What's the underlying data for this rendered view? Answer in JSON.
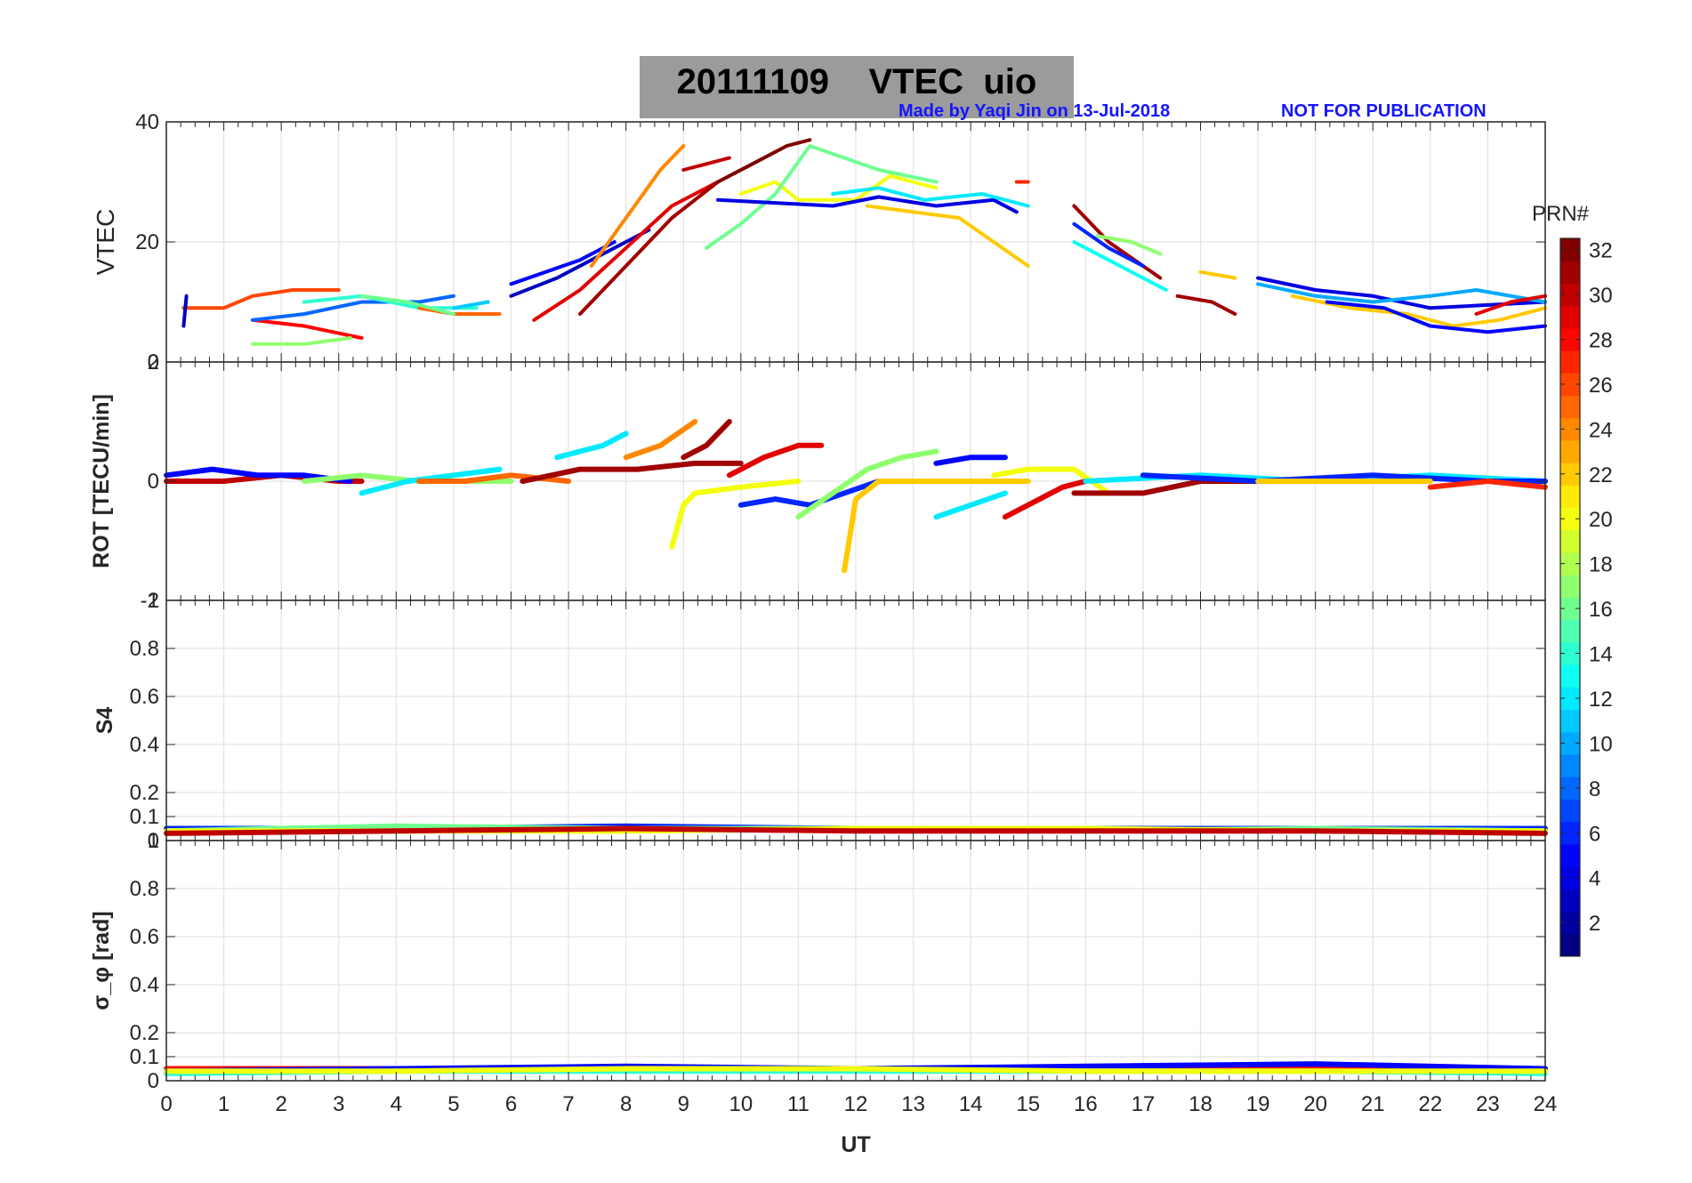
{
  "title": {
    "date": "20111109",
    "parameter": "VTEC",
    "station": "uio",
    "credit": "Made by Yaqi Jin on 13-Jul-2018",
    "notice": "NOT FOR PUBLICATION"
  },
  "colorbar": {
    "label": "PRN#",
    "ticks": [
      "2",
      "4",
      "6",
      "8",
      "10",
      "12",
      "14",
      "16",
      "18",
      "20",
      "22",
      "24",
      "26",
      "28",
      "30",
      "32"
    ],
    "range": [
      1,
      32
    ]
  },
  "chart_data": [
    {
      "type": "line",
      "panel": "VTEC",
      "ylabel": "VTEC",
      "ylim": [
        0,
        40
      ],
      "yticks": [
        "0",
        "20",
        "40"
      ],
      "xlim": [
        0,
        24
      ],
      "series": [
        {
          "prn": 5,
          "x": [
            6.0,
            6.6,
            7.2,
            7.8
          ],
          "y": [
            13,
            15,
            17,
            20
          ]
        },
        {
          "prn": 3,
          "x": [
            6.0,
            6.8,
            7.6,
            8.4
          ],
          "y": [
            11,
            14,
            18,
            22
          ]
        },
        {
          "prn": 24,
          "x": [
            7.4,
            8.0,
            8.6,
            9.0
          ],
          "y": [
            16,
            24,
            32,
            36
          ]
        },
        {
          "prn": 29,
          "x": [
            6.4,
            7.2,
            8.0,
            8.8,
            9.6
          ],
          "y": [
            7,
            12,
            19,
            26,
            30
          ]
        },
        {
          "prn": 31,
          "x": [
            7.2,
            8.0,
            8.8,
            9.6
          ],
          "y": [
            8,
            16,
            24,
            30
          ]
        },
        {
          "prn": 32,
          "x": [
            9.6,
            10.2,
            10.8,
            11.2
          ],
          "y": [
            30,
            33,
            36,
            37
          ]
        },
        {
          "prn": 30,
          "x": [
            9.0,
            9.4,
            9.8
          ],
          "y": [
            32,
            33,
            34
          ]
        },
        {
          "prn": 20,
          "x": [
            10.0,
            10.6,
            11.0,
            12.0,
            12.6,
            13.4
          ],
          "y": [
            28,
            30,
            27,
            27,
            31,
            29
          ]
        },
        {
          "prn": 16,
          "x": [
            9.4,
            10.0,
            10.6,
            11.2,
            12.4,
            13.4
          ],
          "y": [
            19,
            23,
            28,
            36,
            32,
            30
          ]
        },
        {
          "prn": 4,
          "x": [
            9.6,
            10.6,
            11.6,
            12.4,
            13.4,
            14.4,
            14.8
          ],
          "y": [
            27,
            26.5,
            26,
            27.5,
            26,
            27,
            25
          ]
        },
        {
          "prn": 12,
          "x": [
            11.6,
            12.4,
            13.2,
            14.2,
            15.0
          ],
          "y": [
            28,
            29,
            27,
            28,
            26
          ]
        },
        {
          "prn": 22,
          "x": [
            12.2,
            13.0,
            13.8,
            14.4,
            15.0
          ],
          "y": [
            26,
            25,
            24,
            20,
            16
          ]
        },
        {
          "prn": 27,
          "x": [
            14.8,
            15.0
          ],
          "y": [
            30,
            30
          ]
        },
        {
          "prn": 31,
          "x": [
            15.8,
            16.4,
            17.0,
            17.3
          ],
          "y": [
            26,
            20,
            16,
            14
          ]
        },
        {
          "prn": 17,
          "x": [
            16.2,
            16.8,
            17.3
          ],
          "y": [
            21,
            20,
            18
          ]
        },
        {
          "prn": 13,
          "x": [
            15.8,
            16.4,
            17.0,
            17.4
          ],
          "y": [
            20,
            17,
            14,
            12
          ]
        },
        {
          "prn": 6,
          "x": [
            15.8,
            16.4,
            17.0
          ],
          "y": [
            23,
            19,
            16
          ]
        },
        {
          "prn": 31,
          "x": [
            17.6,
            18.2,
            18.6
          ],
          "y": [
            11,
            10,
            8
          ]
        },
        {
          "prn": 22,
          "x": [
            18.0,
            18.6
          ],
          "y": [
            15,
            14
          ]
        },
        {
          "prn": 4,
          "x": [
            19.0,
            20.0,
            21.0,
            22.0,
            23.0,
            24.0
          ],
          "y": [
            14,
            12,
            11,
            9,
            9.5,
            10
          ]
        },
        {
          "prn": 10,
          "x": [
            19.0,
            20.0,
            21.0,
            22.0,
            22.8,
            24.0
          ],
          "y": [
            13,
            11,
            10,
            11,
            12,
            10
          ]
        },
        {
          "prn": 22,
          "x": [
            19.6,
            20.6,
            21.6,
            22.4,
            23.2,
            24.0
          ],
          "y": [
            11,
            9,
            8,
            6,
            7,
            9
          ]
        },
        {
          "prn": 5,
          "x": [
            20.2,
            21.2,
            22.0,
            23.0,
            24.0
          ],
          "y": [
            10,
            9,
            6,
            5,
            6
          ]
        },
        {
          "prn": 29,
          "x": [
            22.8,
            23.4,
            24.0
          ],
          "y": [
            8,
            10,
            11
          ]
        },
        {
          "prn": 26,
          "x": [
            0.3,
            1.0,
            1.5,
            2.2,
            3.0
          ],
          "y": [
            9,
            9,
            11,
            12,
            12
          ]
        },
        {
          "prn": 28,
          "x": [
            1.5,
            2.4,
            3.4
          ],
          "y": [
            7,
            6,
            4
          ]
        },
        {
          "prn": 17,
          "x": [
            1.5,
            2.4,
            3.2
          ],
          "y": [
            3,
            3,
            4
          ]
        },
        {
          "prn": 8,
          "x": [
            1.5,
            2.4,
            3.4,
            4.4,
            5.0
          ],
          "y": [
            7,
            8,
            10,
            10,
            11
          ]
        },
        {
          "prn": 14,
          "x": [
            2.4,
            3.4,
            4.4,
            5.4
          ],
          "y": [
            10,
            11,
            9,
            9
          ]
        },
        {
          "prn": 25,
          "x": [
            4.4,
            5.0,
            5.8
          ],
          "y": [
            9,
            8,
            8
          ]
        },
        {
          "prn": 16,
          "x": [
            3.4,
            4.2,
            5.0
          ],
          "y": [
            11,
            10,
            8
          ]
        },
        {
          "prn": 11,
          "x": [
            5.0,
            5.6
          ],
          "y": [
            9,
            10
          ]
        },
        {
          "prn": 3,
          "x": [
            0.3,
            0.35
          ],
          "y": [
            6,
            11
          ]
        }
      ]
    },
    {
      "type": "line",
      "panel": "ROT",
      "ylabel": "ROT [TECU/min]",
      "ylim": [
        -2,
        2
      ],
      "yticks": [
        "-2",
        "0",
        "2"
      ],
      "xlim": [
        0,
        24
      ],
      "series": [
        {
          "prn": 30,
          "x": [
            0,
            1,
            2,
            3,
            3.4
          ],
          "y": [
            0,
            0,
            0.1,
            0,
            0
          ]
        },
        {
          "prn": 5,
          "x": [
            0,
            0.8,
            1.6,
            2.4,
            3.2
          ],
          "y": [
            0.1,
            0.2,
            0.1,
            0.1,
            0
          ]
        },
        {
          "prn": 17,
          "x": [
            2.4,
            3.4,
            4.4,
            5.4,
            6.0
          ],
          "y": [
            0,
            0.1,
            0,
            0,
            0
          ]
        },
        {
          "prn": 12,
          "x": [
            3.4,
            4.2,
            5.0,
            5.8
          ],
          "y": [
            -0.2,
            0,
            0.1,
            0.2
          ]
        },
        {
          "prn": 25,
          "x": [
            4.4,
            5.2,
            6.0,
            7.0
          ],
          "y": [
            0,
            0,
            0.1,
            0
          ]
        },
        {
          "prn": 31,
          "x": [
            6.2,
            7.2,
            8.2,
            9.2,
            10.0
          ],
          "y": [
            0,
            0.2,
            0.2,
            0.3,
            0.3
          ]
        },
        {
          "prn": 12,
          "x": [
            6.8,
            7.6,
            8.0
          ],
          "y": [
            0.4,
            0.6,
            0.8
          ]
        },
        {
          "prn": 24,
          "x": [
            8.0,
            8.6,
            9.2
          ],
          "y": [
            0.4,
            0.6,
            1.0
          ]
        },
        {
          "prn": 31,
          "x": [
            9.0,
            9.4,
            9.8
          ],
          "y": [
            0.4,
            0.6,
            1.0
          ]
        },
        {
          "prn": 29,
          "x": [
            9.8,
            10.4,
            11.0,
            11.4
          ],
          "y": [
            0.1,
            0.4,
            0.6,
            0.6
          ]
        },
        {
          "prn": 20,
          "x": [
            8.8,
            9.0,
            9.2,
            10.0,
            11.0
          ],
          "y": [
            -1.1,
            -0.4,
            -0.2,
            -0.1,
            0
          ]
        },
        {
          "prn": 6,
          "x": [
            10.0,
            10.6,
            11.2,
            11.8,
            12.4
          ],
          "y": [
            -0.4,
            -0.3,
            -0.4,
            -0.2,
            0
          ]
        },
        {
          "prn": 17,
          "x": [
            11.0,
            11.6,
            12.2,
            12.8,
            13.4
          ],
          "y": [
            -0.6,
            -0.2,
            0.2,
            0.4,
            0.5
          ]
        },
        {
          "prn": 22,
          "x": [
            11.8,
            12.0,
            12.4,
            13.4,
            14.4,
            15.0
          ],
          "y": [
            -1.5,
            -0.3,
            0,
            0,
            0,
            0
          ]
        },
        {
          "prn": 5,
          "x": [
            13.4,
            14.0,
            14.6
          ],
          "y": [
            0.3,
            0.4,
            0.4
          ]
        },
        {
          "prn": 12,
          "x": [
            13.4,
            14.0,
            14.6
          ],
          "y": [
            -0.6,
            -0.4,
            -0.2
          ]
        },
        {
          "prn": 20,
          "x": [
            14.4,
            15.0,
            15.8,
            16.4
          ],
          "y": [
            0.1,
            0.2,
            0.2,
            -0.2
          ]
        },
        {
          "prn": 29,
          "x": [
            14.6,
            15.2,
            15.6,
            16.0
          ],
          "y": [
            -0.6,
            -0.3,
            -0.1,
            0
          ]
        },
        {
          "prn": 31,
          "x": [
            15.8,
            17.0,
            18.0,
            19.0,
            19.4
          ],
          "y": [
            -0.2,
            -0.2,
            0,
            0,
            0
          ]
        },
        {
          "prn": 12,
          "x": [
            16.0,
            18.0,
            20.0,
            22.0,
            24.0
          ],
          "y": [
            0,
            0.1,
            0,
            0.1,
            0
          ]
        },
        {
          "prn": 6,
          "x": [
            17.0,
            19.0,
            21.0,
            23.0,
            24.0
          ],
          "y": [
            0.1,
            0,
            0.1,
            0,
            0
          ]
        },
        {
          "prn": 22,
          "x": [
            19.0,
            20.0,
            21.0,
            22.0
          ],
          "y": [
            0,
            0,
            0,
            0
          ]
        },
        {
          "prn": 27,
          "x": [
            22.0,
            23.0,
            24.0
          ],
          "y": [
            -0.1,
            0,
            -0.1
          ]
        }
      ]
    },
    {
      "type": "line",
      "panel": "S4",
      "ylabel": "S4",
      "ylim": [
        0,
        1
      ],
      "yticks": [
        "0",
        "0.1",
        "0.2",
        "0.4",
        "0.6",
        "0.8",
        "1"
      ],
      "xlim": [
        0,
        24
      ],
      "series": [
        {
          "prn": 6,
          "x": [
            0,
            4,
            8,
            12,
            16,
            20,
            24
          ],
          "y": [
            0.05,
            0.05,
            0.06,
            0.05,
            0.05,
            0.05,
            0.05
          ]
        },
        {
          "prn": 16,
          "x": [
            0,
            4,
            8,
            12,
            16,
            20,
            24
          ],
          "y": [
            0.04,
            0.06,
            0.05,
            0.05,
            0.04,
            0.05,
            0.04
          ]
        },
        {
          "prn": 20,
          "x": [
            0,
            4,
            8,
            12,
            16,
            20,
            24
          ],
          "y": [
            0.04,
            0.04,
            0.04,
            0.05,
            0.05,
            0.04,
            0.04
          ]
        },
        {
          "prn": 30,
          "x": [
            0,
            4,
            8,
            12,
            16,
            20,
            24
          ],
          "y": [
            0.03,
            0.04,
            0.05,
            0.04,
            0.04,
            0.04,
            0.03
          ]
        }
      ]
    },
    {
      "type": "line",
      "panel": "sigma_phi",
      "ylabel": "σ_φ [rad]",
      "ylim": [
        0,
        1
      ],
      "yticks": [
        "0",
        "0.1",
        "0.2",
        "0.4",
        "0.6",
        "0.8",
        "1"
      ],
      "xlim": [
        0,
        24
      ],
      "series": [
        {
          "prn": 28,
          "x": [
            0,
            4,
            8,
            12,
            16,
            20,
            24
          ],
          "y": [
            0.05,
            0.05,
            0.05,
            0.05,
            0.05,
            0.05,
            0.05
          ]
        },
        {
          "prn": 5,
          "x": [
            0,
            4,
            8,
            12,
            16,
            20,
            24
          ],
          "y": [
            0.04,
            0.05,
            0.06,
            0.05,
            0.06,
            0.07,
            0.05
          ]
        },
        {
          "prn": 14,
          "x": [
            0,
            4,
            8,
            12,
            16,
            20,
            24
          ],
          "y": [
            0.03,
            0.04,
            0.04,
            0.04,
            0.04,
            0.04,
            0.03
          ]
        },
        {
          "prn": 20,
          "x": [
            0,
            4,
            8,
            12,
            16,
            20,
            24
          ],
          "y": [
            0.04,
            0.04,
            0.05,
            0.05,
            0.04,
            0.04,
            0.04
          ]
        }
      ]
    }
  ],
  "xaxis": {
    "label": "UT",
    "ticks": [
      "0",
      "1",
      "2",
      "3",
      "4",
      "5",
      "6",
      "7",
      "8",
      "9",
      "10",
      "11",
      "12",
      "13",
      "14",
      "15",
      "16",
      "17",
      "18",
      "19",
      "20",
      "21",
      "22",
      "23",
      "24"
    ]
  }
}
